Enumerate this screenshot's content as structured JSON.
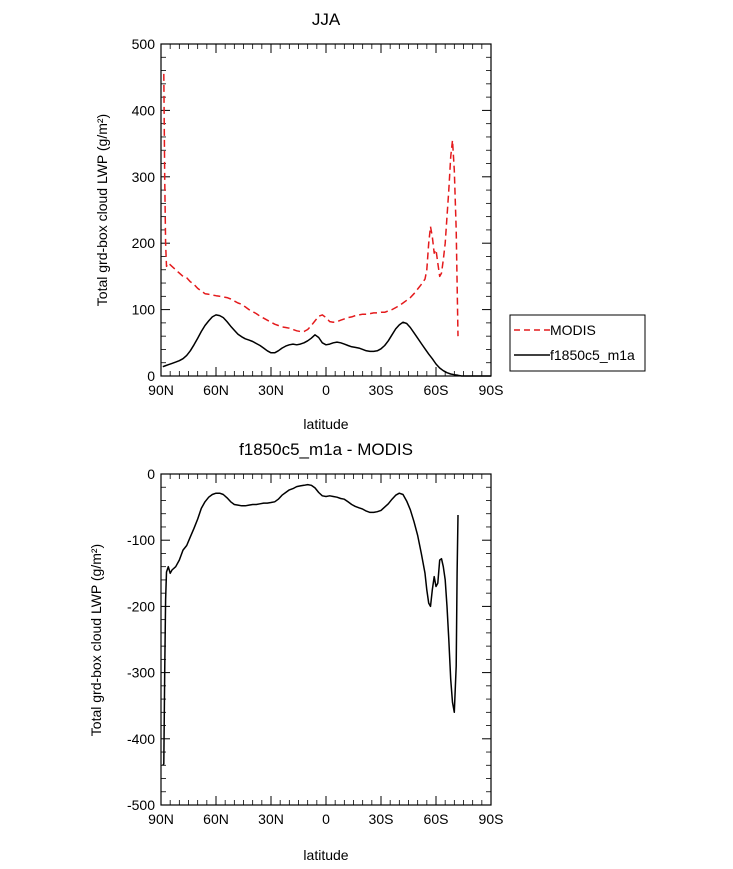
{
  "chart_data": [
    {
      "type": "line",
      "title": "JJA",
      "xlabel": "latitude",
      "ylabel": "Total grd-box cloud LWP (g/m²)",
      "xlim": [
        90,
        -90
      ],
      "ylim": [
        0,
        500
      ],
      "x_ticks": [
        90,
        60,
        30,
        0,
        -30,
        -60,
        -90
      ],
      "x_tick_labels": [
        "90N",
        "60N",
        "30N",
        "0",
        "30S",
        "60S",
        "90S"
      ],
      "y_ticks": [
        0,
        100,
        200,
        300,
        400,
        500
      ],
      "y_tick_labels": [
        "0",
        "100",
        "200",
        "300",
        "400",
        "500"
      ],
      "legend": {
        "placement": "right",
        "entries": [
          "MODIS",
          "f1850c5_m1a"
        ]
      },
      "series": [
        {
          "name": "MODIS",
          "color": "#e41a1c",
          "dash": "dashed",
          "points": [
            [
              88.5,
              455
            ],
            [
              88,
              300
            ],
            [
              87.5,
              200
            ],
            [
              87,
              165
            ],
            [
              86,
              170
            ],
            [
              84,
              165
            ],
            [
              82,
              160
            ],
            [
              80,
              155
            ],
            [
              78,
              150
            ],
            [
              76,
              148
            ],
            [
              74,
              142
            ],
            [
              72,
              138
            ],
            [
              70,
              132
            ],
            [
              68,
              128
            ],
            [
              66,
              124
            ],
            [
              64,
              123
            ],
            [
              62,
              122
            ],
            [
              60,
              121
            ],
            [
              58,
              120
            ],
            [
              56,
              119
            ],
            [
              54,
              118
            ],
            [
              52,
              116
            ],
            [
              50,
              113
            ],
            [
              48,
              110
            ],
            [
              46,
              108
            ],
            [
              44,
              104
            ],
            [
              42,
              100
            ],
            [
              40,
              97
            ],
            [
              38,
              94
            ],
            [
              36,
              90
            ],
            [
              34,
              87
            ],
            [
              32,
              84
            ],
            [
              30,
              81
            ],
            [
              28,
              78
            ],
            [
              26,
              76
            ],
            [
              24,
              74
            ],
            [
              22,
              73
            ],
            [
              20,
              72
            ],
            [
              18,
              70
            ],
            [
              16,
              68
            ],
            [
              14,
              67
            ],
            [
              12,
              67
            ],
            [
              10,
              70
            ],
            [
              8,
              76
            ],
            [
              6,
              83
            ],
            [
              4,
              90
            ],
            [
              2,
              92
            ],
            [
              0,
              88
            ],
            [
              -2,
              82
            ],
            [
              -4,
              81
            ],
            [
              -6,
              82
            ],
            [
              -8,
              84
            ],
            [
              -10,
              86
            ],
            [
              -12,
              88
            ],
            [
              -14,
              89
            ],
            [
              -16,
              91
            ],
            [
              -18,
              92
            ],
            [
              -20,
              93
            ],
            [
              -22,
              93
            ],
            [
              -24,
              94
            ],
            [
              -26,
              95
            ],
            [
              -28,
              95
            ],
            [
              -30,
              96
            ],
            [
              -32,
              96
            ],
            [
              -34,
              98
            ],
            [
              -36,
              100
            ],
            [
              -38,
              103
            ],
            [
              -40,
              106
            ],
            [
              -42,
              110
            ],
            [
              -44,
              114
            ],
            [
              -46,
              118
            ],
            [
              -48,
              124
            ],
            [
              -50,
              131
            ],
            [
              -52,
              138
            ],
            [
              -54,
              146
            ],
            [
              -55,
              160
            ],
            [
              -56,
              200
            ],
            [
              -57,
              225
            ],
            [
              -58,
              210
            ],
            [
              -59,
              185
            ],
            [
              -60,
              190
            ],
            [
              -61,
              170
            ],
            [
              -62,
              150
            ],
            [
              -63,
              155
            ],
            [
              -64,
              175
            ],
            [
              -65,
              200
            ],
            [
              -66,
              240
            ],
            [
              -67,
              280
            ],
            [
              -68,
              330
            ],
            [
              -69,
              355
            ],
            [
              -70,
              310
            ],
            [
              -71,
              220
            ],
            [
              -71.5,
              140
            ],
            [
              -72,
              60
            ]
          ]
        },
        {
          "name": "f1850c5_m1a",
          "color": "#000000",
          "dash": "solid",
          "points": [
            [
              89,
              14
            ],
            [
              88,
              15
            ],
            [
              86,
              17
            ],
            [
              84,
              19
            ],
            [
              82,
              21
            ],
            [
              80,
              23
            ],
            [
              78,
              26
            ],
            [
              76,
              31
            ],
            [
              74,
              38
            ],
            [
              72,
              47
            ],
            [
              70,
              57
            ],
            [
              68,
              67
            ],
            [
              66,
              76
            ],
            [
              64,
              83
            ],
            [
              62,
              89
            ],
            [
              60,
              92
            ],
            [
              58,
              91
            ],
            [
              56,
              88
            ],
            [
              54,
              82
            ],
            [
              52,
              75
            ],
            [
              50,
              69
            ],
            [
              48,
              63
            ],
            [
              46,
              59
            ],
            [
              44,
              56
            ],
            [
              42,
              54
            ],
            [
              40,
              52
            ],
            [
              38,
              49
            ],
            [
              36,
              46
            ],
            [
              34,
              42
            ],
            [
              32,
              38
            ],
            [
              30,
              35
            ],
            [
              28,
              35
            ],
            [
              26,
              38
            ],
            [
              24,
              42
            ],
            [
              22,
              45
            ],
            [
              20,
              47
            ],
            [
              18,
              48
            ],
            [
              16,
              47
            ],
            [
              14,
              48
            ],
            [
              12,
              50
            ],
            [
              10,
              53
            ],
            [
              8,
              57
            ],
            [
              6,
              62
            ],
            [
              4,
              58
            ],
            [
              2,
              50
            ],
            [
              0,
              47
            ],
            [
              -2,
              48
            ],
            [
              -4,
              50
            ],
            [
              -6,
              51
            ],
            [
              -8,
              50
            ],
            [
              -10,
              48
            ],
            [
              -12,
              46
            ],
            [
              -14,
              44
            ],
            [
              -16,
              43
            ],
            [
              -18,
              42
            ],
            [
              -20,
              40
            ],
            [
              -22,
              38
            ],
            [
              -24,
              37
            ],
            [
              -26,
              37
            ],
            [
              -28,
              38
            ],
            [
              -30,
              41
            ],
            [
              -32,
              46
            ],
            [
              -34,
              53
            ],
            [
              -36,
              62
            ],
            [
              -38,
              71
            ],
            [
              -40,
              77
            ],
            [
              -42,
              81
            ],
            [
              -44,
              79
            ],
            [
              -46,
              73
            ],
            [
              -48,
              65
            ],
            [
              -50,
              57
            ],
            [
              -52,
              49
            ],
            [
              -54,
              41
            ],
            [
              -56,
              33
            ],
            [
              -58,
              26
            ],
            [
              -60,
              18
            ],
            [
              -62,
              12
            ],
            [
              -64,
              8
            ],
            [
              -66,
              5
            ],
            [
              -68,
              3
            ],
            [
              -70,
              2
            ],
            [
              -72,
              1
            ],
            [
              -74,
              0
            ],
            [
              -80,
              0
            ],
            [
              -90,
              0
            ]
          ]
        }
      ]
    },
    {
      "type": "line",
      "title": "f1850c5_m1a - MODIS",
      "xlabel": "latitude",
      "ylabel": "Total grd-box cloud LWP (g/m²)",
      "xlim": [
        90,
        -90
      ],
      "ylim": [
        -500,
        0
      ],
      "x_ticks": [
        90,
        60,
        30,
        0,
        -30,
        -60,
        -90
      ],
      "x_tick_labels": [
        "90N",
        "60N",
        "30N",
        "0",
        "30S",
        "60S",
        "90S"
      ],
      "y_ticks": [
        0,
        -100,
        -200,
        -300,
        -400,
        -500
      ],
      "y_tick_labels": [
        "0",
        "-100",
        "-200",
        "-300",
        "-400",
        "-500"
      ],
      "series": [
        {
          "color": "#000000",
          "dash": "solid",
          "points": [
            [
              89,
              -440
            ],
            [
              88.5,
              -438
            ],
            [
              88,
              -300
            ],
            [
              87.5,
              -190
            ],
            [
              87,
              -148
            ],
            [
              86,
              -140
            ],
            [
              85,
              -150
            ],
            [
              84,
              -145
            ],
            [
              82,
              -140
            ],
            [
              80,
              -130
            ],
            [
              78,
              -115
            ],
            [
              76,
              -108
            ],
            [
              74,
              -95
            ],
            [
              72,
              -82
            ],
            [
              70,
              -68
            ],
            [
              68,
              -52
            ],
            [
              66,
              -42
            ],
            [
              64,
              -35
            ],
            [
              62,
              -31
            ],
            [
              60,
              -29
            ],
            [
              58,
              -29
            ],
            [
              56,
              -31
            ],
            [
              54,
              -36
            ],
            [
              52,
              -42
            ],
            [
              50,
              -46
            ],
            [
              48,
              -47
            ],
            [
              46,
              -48
            ],
            [
              44,
              -48
            ],
            [
              42,
              -47
            ],
            [
              40,
              -46
            ],
            [
              38,
              -46
            ],
            [
              36,
              -45
            ],
            [
              34,
              -44
            ],
            [
              32,
              -44
            ],
            [
              30,
              -43
            ],
            [
              28,
              -42
            ],
            [
              26,
              -38
            ],
            [
              24,
              -32
            ],
            [
              22,
              -28
            ],
            [
              20,
              -24
            ],
            [
              18,
              -22
            ],
            [
              16,
              -19
            ],
            [
              14,
              -18
            ],
            [
              12,
              -17
            ],
            [
              10,
              -16
            ],
            [
              8,
              -17
            ],
            [
              6,
              -21
            ],
            [
              4,
              -28
            ],
            [
              2,
              -33
            ],
            [
              0,
              -34
            ],
            [
              -2,
              -33
            ],
            [
              -4,
              -34
            ],
            [
              -6,
              -35
            ],
            [
              -8,
              -37
            ],
            [
              -10,
              -38
            ],
            [
              -12,
              -42
            ],
            [
              -14,
              -46
            ],
            [
              -16,
              -49
            ],
            [
              -18,
              -51
            ],
            [
              -20,
              -53
            ],
            [
              -22,
              -56
            ],
            [
              -24,
              -58
            ],
            [
              -26,
              -58
            ],
            [
              -28,
              -57
            ],
            [
              -30,
              -55
            ],
            [
              -32,
              -50
            ],
            [
              -34,
              -45
            ],
            [
              -36,
              -38
            ],
            [
              -38,
              -32
            ],
            [
              -40,
              -29
            ],
            [
              -42,
              -31
            ],
            [
              -44,
              -41
            ],
            [
              -46,
              -54
            ],
            [
              -48,
              -72
            ],
            [
              -50,
              -93
            ],
            [
              -52,
              -120
            ],
            [
              -54,
              -150
            ],
            [
              -55,
              -175
            ],
            [
              -56,
              -195
            ],
            [
              -57,
              -200
            ],
            [
              -58,
              -175
            ],
            [
              -59,
              -155
            ],
            [
              -60,
              -170
            ],
            [
              -61,
              -165
            ],
            [
              -62,
              -130
            ],
            [
              -63,
              -128
            ],
            [
              -64,
              -140
            ],
            [
              -65,
              -160
            ],
            [
              -66,
              -200
            ],
            [
              -67,
              -250
            ],
            [
              -68,
              -310
            ],
            [
              -69,
              -345
            ],
            [
              -70,
              -360
            ],
            [
              -71,
              -290
            ],
            [
              -71.5,
              -150
            ],
            [
              -72,
              -62
            ]
          ]
        }
      ]
    }
  ]
}
